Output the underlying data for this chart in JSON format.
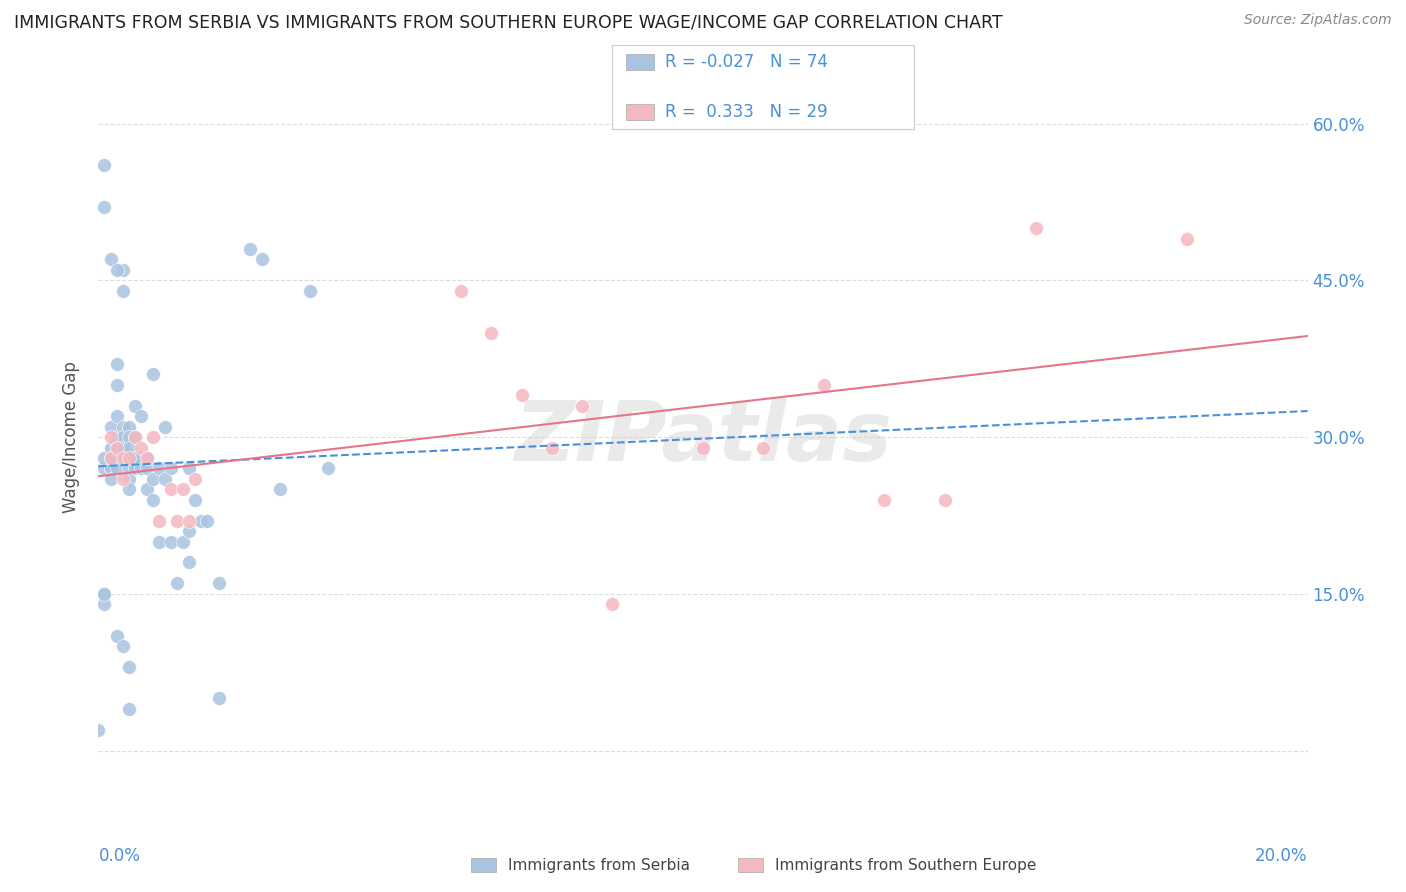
{
  "title": "IMMIGRANTS FROM SERBIA VS IMMIGRANTS FROM SOUTHERN EUROPE WAGE/INCOME GAP CORRELATION CHART",
  "source": "Source: ZipAtlas.com",
  "ylabel": "Wage/Income Gap",
  "xlim": [
    0.0,
    0.2
  ],
  "ylim": [
    -0.05,
    0.65
  ],
  "yticks": [
    0.0,
    0.15,
    0.3,
    0.45,
    0.6
  ],
  "xticks": [
    0.0,
    0.02,
    0.04,
    0.06,
    0.08,
    0.1,
    0.12,
    0.14,
    0.16,
    0.18,
    0.2
  ],
  "serbia_R": -0.027,
  "serbia_N": 74,
  "southern_R": 0.333,
  "southern_N": 29,
  "serbia_color": "#a8c4e0",
  "southern_color": "#f4b8c1",
  "serbia_line_color": "#4a90d9",
  "southern_line_color": "#e8748a",
  "legend_label_serbia": "Immigrants from Serbia",
  "legend_label_southern": "Immigrants from Southern Europe",
  "serbia_x": [
    0.0,
    0.001,
    0.001,
    0.001,
    0.001,
    0.001,
    0.002,
    0.002,
    0.002,
    0.002,
    0.002,
    0.002,
    0.002,
    0.003,
    0.003,
    0.003,
    0.003,
    0.003,
    0.003,
    0.003,
    0.004,
    0.004,
    0.004,
    0.004,
    0.004,
    0.005,
    0.005,
    0.005,
    0.005,
    0.005,
    0.005,
    0.006,
    0.006,
    0.006,
    0.006,
    0.007,
    0.007,
    0.007,
    0.008,
    0.008,
    0.008,
    0.009,
    0.009,
    0.009,
    0.01,
    0.01,
    0.011,
    0.011,
    0.012,
    0.012,
    0.013,
    0.014,
    0.015,
    0.015,
    0.015,
    0.016,
    0.017,
    0.018,
    0.02,
    0.02,
    0.025,
    0.027,
    0.03,
    0.035,
    0.038,
    0.001,
    0.003,
    0.004,
    0.005,
    0.003,
    0.002,
    0.001,
    0.005,
    0.006
  ],
  "serbia_y": [
    0.02,
    0.52,
    0.27,
    0.28,
    0.15,
    0.56,
    0.27,
    0.31,
    0.29,
    0.27,
    0.26,
    0.28,
    0.47,
    0.3,
    0.29,
    0.28,
    0.27,
    0.37,
    0.35,
    0.32,
    0.31,
    0.3,
    0.29,
    0.46,
    0.44,
    0.31,
    0.3,
    0.29,
    0.27,
    0.26,
    0.25,
    0.33,
    0.3,
    0.27,
    0.28,
    0.32,
    0.28,
    0.27,
    0.28,
    0.27,
    0.25,
    0.26,
    0.36,
    0.24,
    0.27,
    0.2,
    0.31,
    0.26,
    0.27,
    0.2,
    0.16,
    0.2,
    0.27,
    0.21,
    0.18,
    0.24,
    0.22,
    0.22,
    0.05,
    0.16,
    0.48,
    0.47,
    0.25,
    0.44,
    0.27,
    0.14,
    0.11,
    0.1,
    0.04,
    0.46,
    0.28,
    0.15,
    0.08,
    0.28
  ],
  "southern_x": [
    0.002,
    0.002,
    0.003,
    0.004,
    0.004,
    0.005,
    0.006,
    0.007,
    0.008,
    0.009,
    0.01,
    0.012,
    0.013,
    0.014,
    0.015,
    0.016,
    0.06,
    0.065,
    0.07,
    0.075,
    0.08,
    0.085,
    0.1,
    0.11,
    0.12,
    0.13,
    0.14,
    0.155,
    0.18
  ],
  "southern_y": [
    0.3,
    0.28,
    0.29,
    0.28,
    0.26,
    0.28,
    0.3,
    0.29,
    0.28,
    0.3,
    0.22,
    0.25,
    0.22,
    0.25,
    0.22,
    0.26,
    0.44,
    0.4,
    0.34,
    0.29,
    0.33,
    0.14,
    0.29,
    0.29,
    0.35,
    0.24,
    0.24,
    0.5,
    0.49
  ],
  "watermark": "ZIPatlas",
  "background_color": "#ffffff",
  "grid_color": "#dddddd",
  "title_color": "#222222",
  "axis_label_color": "#4a90d9",
  "right_ytick_color": "#4a90d9"
}
